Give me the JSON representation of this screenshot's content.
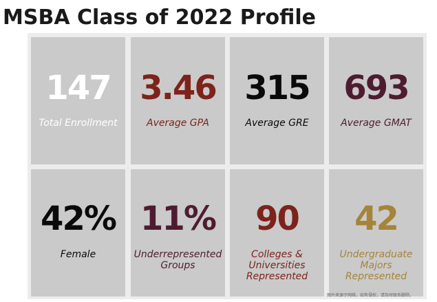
{
  "title": "MSBA Class of 2022 Profile",
  "colors": {
    "background": "#ffffff",
    "panel": "#ececec",
    "tile": "#cacaca",
    "white": "#ffffff",
    "red": "#7d231b",
    "black": "#0a0a0a",
    "plum": "#4e1c30",
    "gold": "#a5843a"
  },
  "stats": [
    {
      "value": "147",
      "label": "Total Enrollment",
      "color": "white"
    },
    {
      "value": "3.46",
      "label": "Average GPA",
      "color": "red"
    },
    {
      "value": "315",
      "label": "Average GRE",
      "color": "black"
    },
    {
      "value": "693",
      "label": "Average GMAT",
      "color": "plum"
    },
    {
      "value": "42%",
      "label": "Female",
      "color": "black"
    },
    {
      "value": "11%",
      "label": "Underrepresented\nGroups",
      "color": "plum"
    },
    {
      "value": "90",
      "label": "Colleges &\nUniversities\nRepresented",
      "color": "red"
    },
    {
      "value": "42",
      "label": "Undergraduate\nMajors\nRepresented",
      "color": "gold"
    }
  ],
  "watermark": "图片来源于网络，如有侵权，请及时联系删除。"
}
